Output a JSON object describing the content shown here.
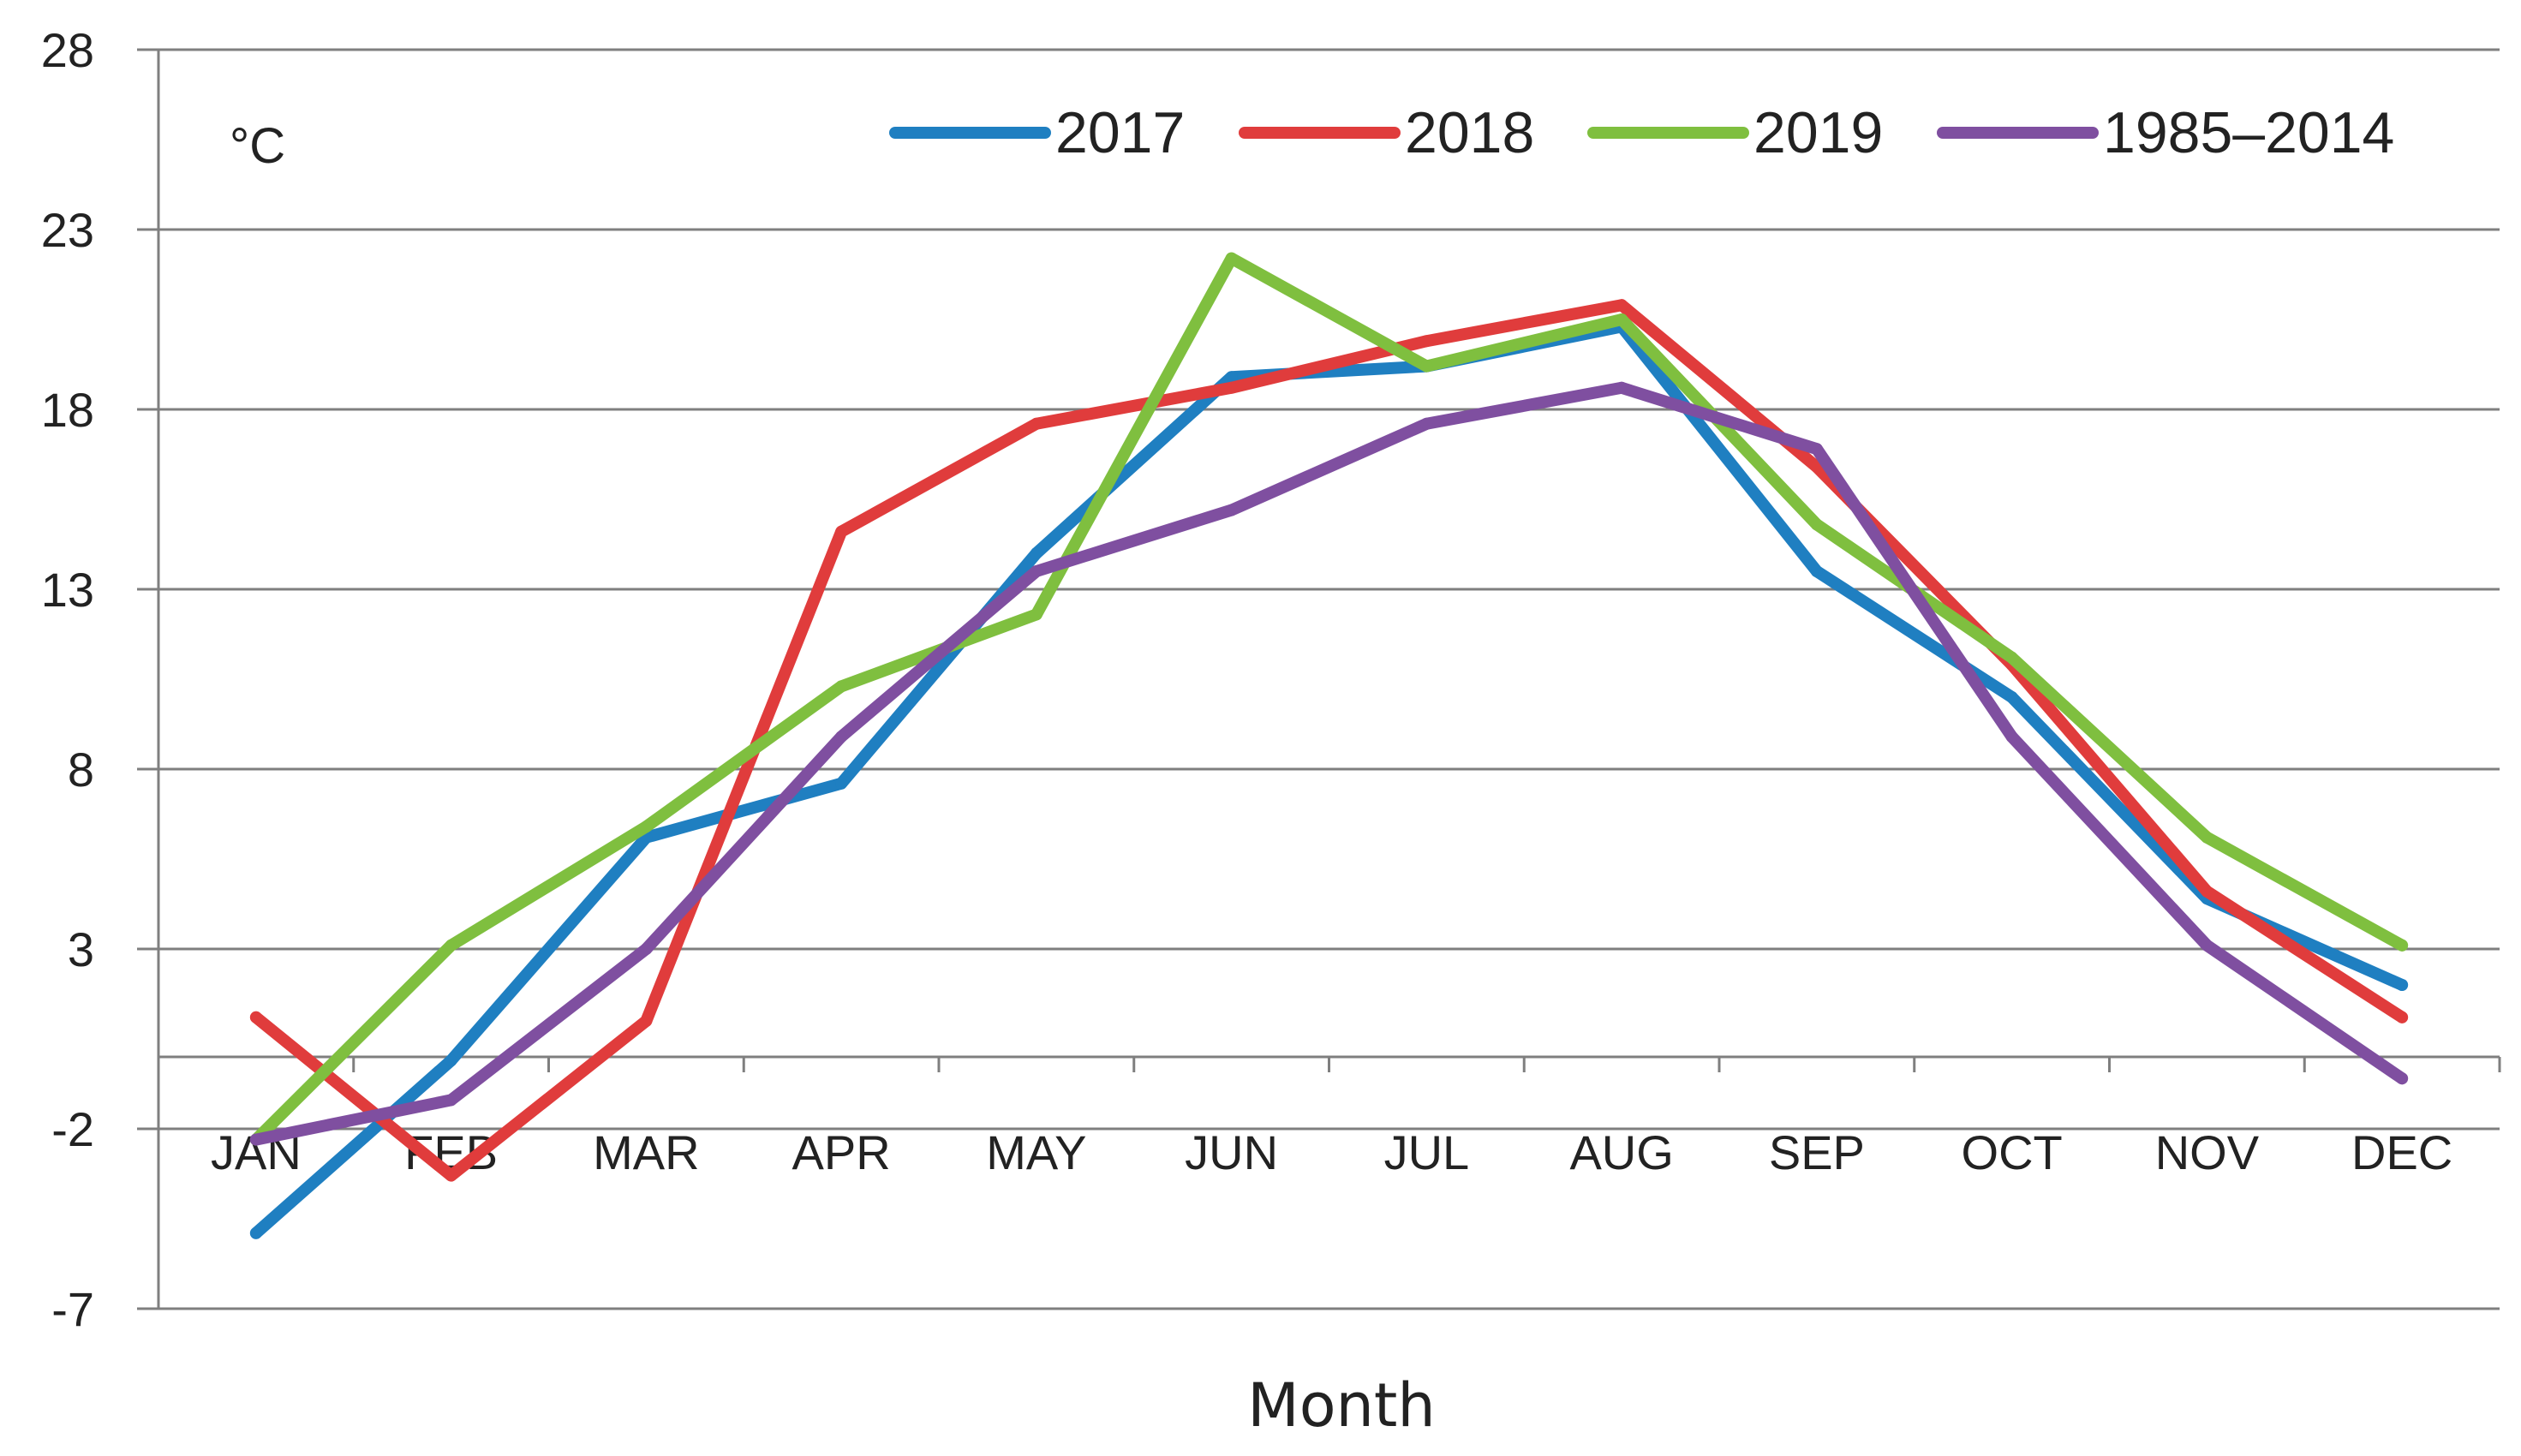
{
  "chart_data": {
    "type": "line",
    "title": "",
    "xlabel": "Month",
    "ylabel": "°C",
    "ylim": [
      -7,
      28
    ],
    "yticks": [
      28,
      23,
      18,
      13,
      8,
      3,
      -2,
      -7
    ],
    "zero_line": true,
    "grid": true,
    "legend_position": "top-right",
    "categories": [
      "JAN",
      "FEB",
      "MAR",
      "APR",
      "MAY",
      "JUN",
      "JUL",
      "AUG",
      "SEP",
      "OCT",
      "NOV",
      "DEC"
    ],
    "series": [
      {
        "name": "2017",
        "color": "#1f7fc1",
        "values": [
          -4.9,
          -0.1,
          6.1,
          7.6,
          14.0,
          18.9,
          19.2,
          20.3,
          13.5,
          10.0,
          4.4,
          2.0
        ]
      },
      {
        "name": "2018",
        "color": "#e03c3c",
        "values": [
          1.1,
          -3.3,
          1.0,
          14.6,
          17.6,
          18.6,
          19.9,
          20.9,
          16.4,
          10.9,
          4.6,
          1.1
        ]
      },
      {
        "name": "2019",
        "color": "#7fbf3f",
        "values": [
          -2.3,
          3.1,
          6.4,
          10.3,
          12.3,
          22.2,
          19.2,
          20.5,
          14.8,
          11.1,
          6.1,
          3.1
        ]
      },
      {
        "name": "1985–2014",
        "color": "#7f4fa0",
        "values": [
          -2.3,
          -1.2,
          3.0,
          8.9,
          13.5,
          15.2,
          17.6,
          18.6,
          16.9,
          8.9,
          3.1,
          -0.6
        ]
      }
    ]
  }
}
